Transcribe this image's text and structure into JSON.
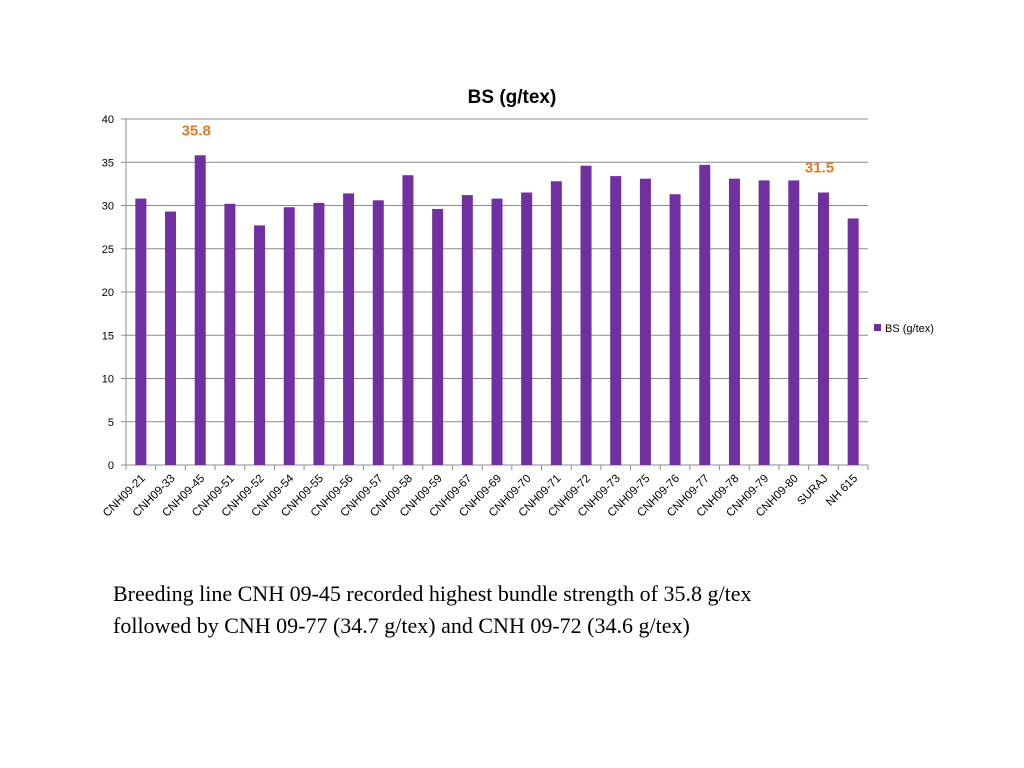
{
  "chart_data": {
    "type": "bar",
    "title": "BS (g/tex)",
    "xlabel": "",
    "ylabel": "",
    "ylim": [
      0,
      40
    ],
    "yticks": [
      0,
      5,
      10,
      15,
      20,
      25,
      30,
      35,
      40
    ],
    "grid": true,
    "legend_position": "right",
    "categories": [
      "CNH09-21",
      "CNH09-33",
      "CNH09-45",
      "CNH09-51",
      "CNH09-52",
      "CNH09-54",
      "CNH09-55",
      "CNH09-56",
      "CNH09-57",
      "CNH09-58",
      "CNH09-59",
      "CNH09-67",
      "CNH09-69",
      "CNH09-70",
      "CNH09-71",
      "CNH09-72",
      "CNH09-73",
      "CNH09-75",
      "CNH09-76",
      "CNH09-77",
      "CNH09-78",
      "CNH09-79",
      "CNH09-80",
      "SURAJ",
      "NH 615"
    ],
    "series": [
      {
        "name": "BS (g/tex)",
        "color": "#7030a0",
        "values": [
          30.8,
          29.3,
          35.8,
          30.2,
          27.7,
          29.8,
          30.3,
          31.4,
          30.6,
          33.5,
          29.6,
          31.2,
          30.8,
          31.5,
          32.8,
          34.6,
          33.4,
          33.1,
          31.3,
          34.7,
          33.1,
          32.9,
          32.9,
          31.5,
          28.5
        ]
      }
    ],
    "annotations": [
      {
        "category": "CNH09-45",
        "text": "35.8",
        "color": "#e07b1f"
      },
      {
        "category": "SURAJ",
        "text": "31.5",
        "color": "#e07b1f"
      }
    ]
  },
  "caption": {
    "line1": "Breeding line CNH 09-45 recorded highest bundle strength of 35.8 g/tex",
    "line2": "followed by CNH 09-77 (34.7 g/tex) and CNH 09-72 (34.6 g/tex)"
  }
}
